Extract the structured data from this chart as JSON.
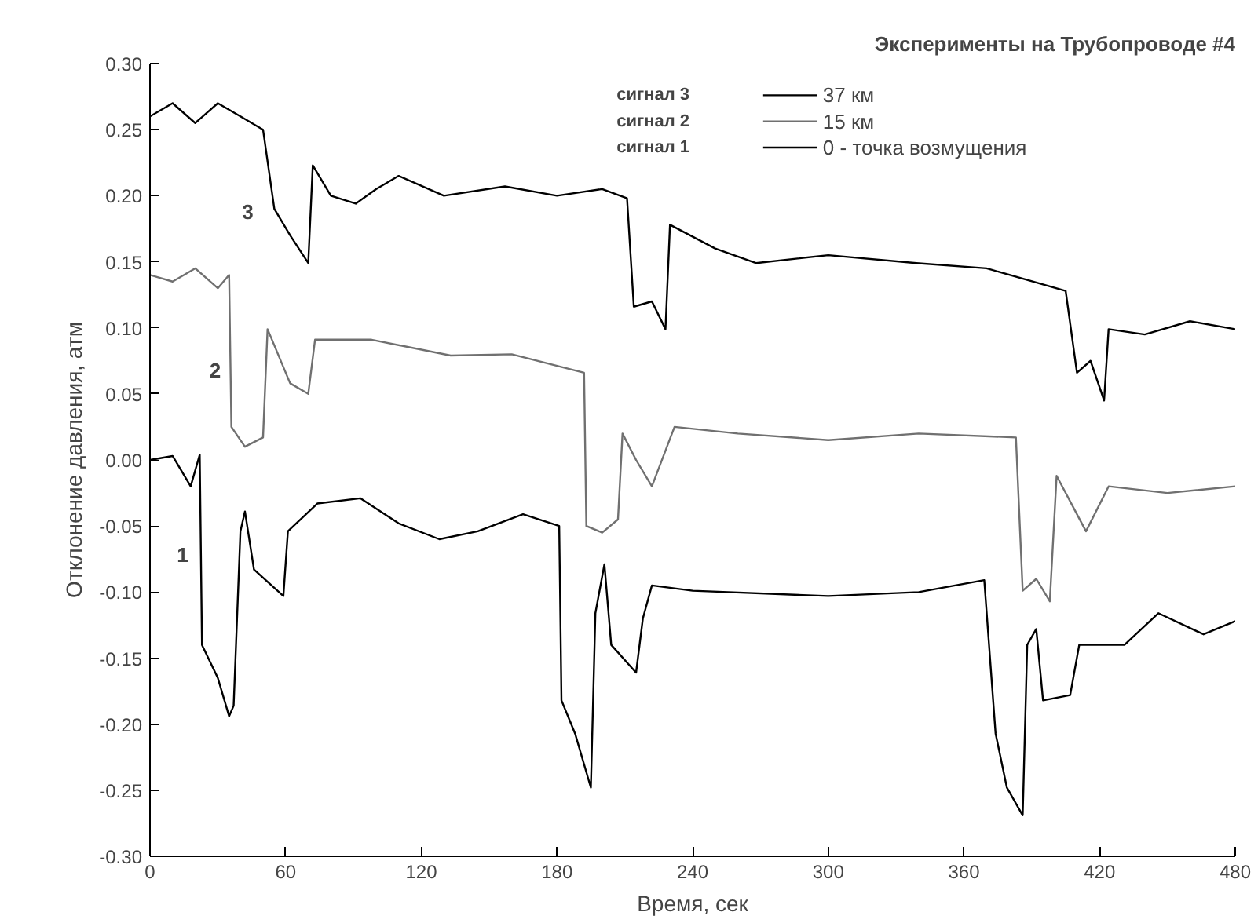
{
  "chart_data": {
    "type": "line",
    "title": "Эксперименты на Трубопроводе #4",
    "xlabel": "Время, сек",
    "ylabel": "Отклонение давления, атм",
    "xlim": [
      0,
      480
    ],
    "xticks": [
      0,
      60,
      120,
      180,
      240,
      300,
      360,
      420,
      480
    ],
    "ylim": [
      -0.3,
      0.3
    ],
    "yticks": [
      {
        "value": -0.3,
        "label": "-0.30"
      },
      {
        "value": -0.25,
        "label": "-0.25"
      },
      {
        "value": -0.2,
        "label": "-0.20"
      },
      {
        "value": -0.15,
        "label": "-0.15"
      },
      {
        "value": -0.1,
        "label": "-0.10"
      },
      {
        "value": -0.05,
        "label": "-0.05"
      },
      {
        "value": 0,
        "label": "0.00"
      },
      {
        "value": 0.05,
        "label": "0.05"
      },
      {
        "value": 0.1,
        "label": "0.10"
      },
      {
        "value": 0.15,
        "label": "0.15"
      },
      {
        "value": 0.2,
        "label": "0.20"
      },
      {
        "value": 0.25,
        "label": "0.25"
      },
      {
        "value": 0.3,
        "label": "0.30"
      }
    ],
    "grid": false,
    "legend": "top right",
    "line_style": "solid",
    "marker": "none",
    "series": [
      {
        "name": "37 км",
        "color": "#000000",
        "x": [
          0,
          10,
          20,
          30,
          40,
          50,
          55,
          62,
          70,
          72,
          80,
          91,
          100,
          110,
          130,
          157,
          180,
          200,
          211,
          214,
          222,
          228,
          230,
          250,
          268,
          300,
          339,
          370,
          405,
          410,
          416,
          422,
          424,
          440,
          460,
          480
        ],
        "values": [
          0.26,
          0.27,
          0.255,
          0.27,
          0.26,
          0.25,
          0.19,
          0.17,
          0.149,
          0.223,
          0.2,
          0.194,
          0.205,
          0.215,
          0.2,
          0.207,
          0.2,
          0.205,
          0.198,
          0.116,
          0.12,
          0.099,
          0.178,
          0.16,
          0.149,
          0.155,
          0.149,
          0.145,
          0.128,
          0.066,
          0.075,
          0.045,
          0.099,
          0.095,
          0.105,
          0.099
        ]
      },
      {
        "name": "15 км",
        "color": "#707070",
        "x": [
          0,
          10,
          20,
          30,
          35,
          36,
          42,
          50,
          52,
          62,
          70,
          73,
          98,
          133,
          160,
          192,
          193,
          200,
          207,
          209,
          215,
          222,
          232,
          260,
          300,
          340,
          383,
          386,
          392,
          398,
          401,
          414,
          424,
          450,
          480
        ],
        "values": [
          0.14,
          0.135,
          0.145,
          0.13,
          0.14,
          0.025,
          0.01,
          0.017,
          0.099,
          0.058,
          0.05,
          0.091,
          0.091,
          0.079,
          0.08,
          0.066,
          -0.05,
          -0.055,
          -0.045,
          0.02,
          0.0,
          -0.02,
          0.025,
          0.02,
          0.015,
          0.02,
          0.017,
          -0.099,
          -0.09,
          -0.107,
          -0.012,
          -0.054,
          -0.02,
          -0.025,
          -0.02
        ]
      },
      {
        "name": "0 - точка возмущения",
        "color": "#000000",
        "x": [
          0,
          10,
          18,
          22,
          23,
          30,
          35,
          37,
          40,
          42,
          46,
          59,
          61,
          74,
          93,
          110,
          128,
          145,
          165,
          181,
          182,
          188,
          195,
          197,
          201,
          204,
          215,
          218,
          222,
          240,
          300,
          340,
          369,
          374,
          379,
          386,
          388,
          392,
          395,
          407,
          411,
          431,
          446,
          466,
          480
        ],
        "values": [
          0.0,
          0.003,
          -0.02,
          0.004,
          -0.14,
          -0.165,
          -0.194,
          -0.186,
          -0.054,
          -0.039,
          -0.083,
          -0.103,
          -0.054,
          -0.033,
          -0.029,
          -0.048,
          -0.06,
          -0.054,
          -0.041,
          -0.05,
          -0.182,
          -0.207,
          -0.248,
          -0.116,
          -0.079,
          -0.14,
          -0.161,
          -0.12,
          -0.095,
          -0.099,
          -0.103,
          -0.1,
          -0.091,
          -0.207,
          -0.248,
          -0.269,
          -0.14,
          -0.128,
          -0.182,
          -0.178,
          -0.14,
          -0.14,
          -0.116,
          -0.132,
          -0.122
        ]
      }
    ],
    "annotations": [
      "сигнал 3",
      "сигнал 2",
      "сигнал 1",
      "3",
      "2",
      "1"
    ]
  }
}
